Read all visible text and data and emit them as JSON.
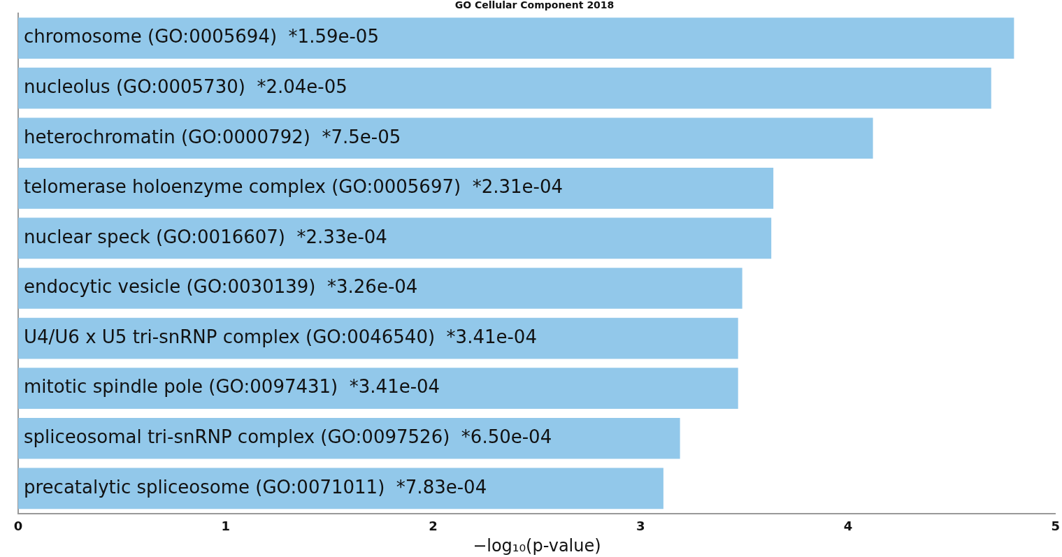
{
  "chart_data": {
    "type": "bar",
    "orientation": "horizontal",
    "title": "GO Cellular Component 2018",
    "xlabel": "−log₁₀(p-value)",
    "categories": [
      "chromosome (GO:0005694)  *1.59e-05",
      "nucleolus (GO:0005730)  *2.04e-05",
      "heterochromatin (GO:0000792)  *7.5e-05",
      "telomerase holoenzyme complex (GO:0005697)  *2.31e-04",
      "nuclear speck (GO:0016607)  *2.33e-04",
      "endocytic vesicle (GO:0030139)  *3.26e-04",
      "U4/U6 x U5 tri-snRNP complex (GO:0046540)  *3.41e-04",
      "mitotic spindle pole (GO:0097431)  *3.41e-04",
      "spliceosomal tri-snRNP complex (GO:0097526)  *6.50e-04",
      "precatalytic spliceosome (GO:0071011)  *7.83e-04"
    ],
    "values": [
      4.8,
      4.69,
      4.12,
      3.64,
      3.63,
      3.49,
      3.47,
      3.47,
      3.19,
      3.11
    ],
    "color": "#92c8ea",
    "xlim": [
      0,
      5
    ],
    "xticks": [
      0,
      1,
      2,
      3,
      4,
      5
    ],
    "grid": false
  }
}
